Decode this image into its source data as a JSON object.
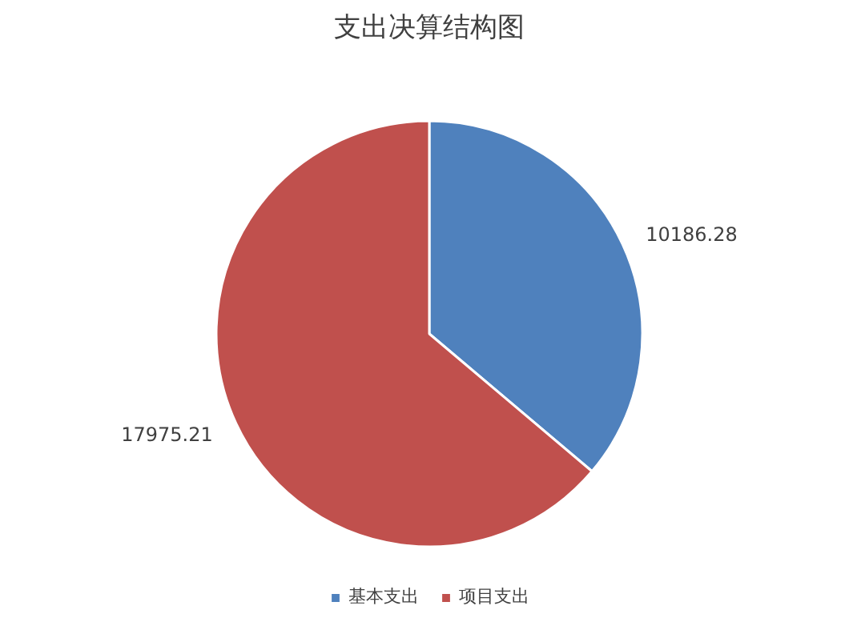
{
  "chart_data": {
    "type": "pie",
    "title": "支出决算结构图",
    "categories": [
      "基本支出",
      "项目支出"
    ],
    "values": [
      10186.28,
      17975.21
    ],
    "colors": [
      "#4f81bd",
      "#c0504d"
    ],
    "data_labels": true,
    "legend": "bottom"
  }
}
